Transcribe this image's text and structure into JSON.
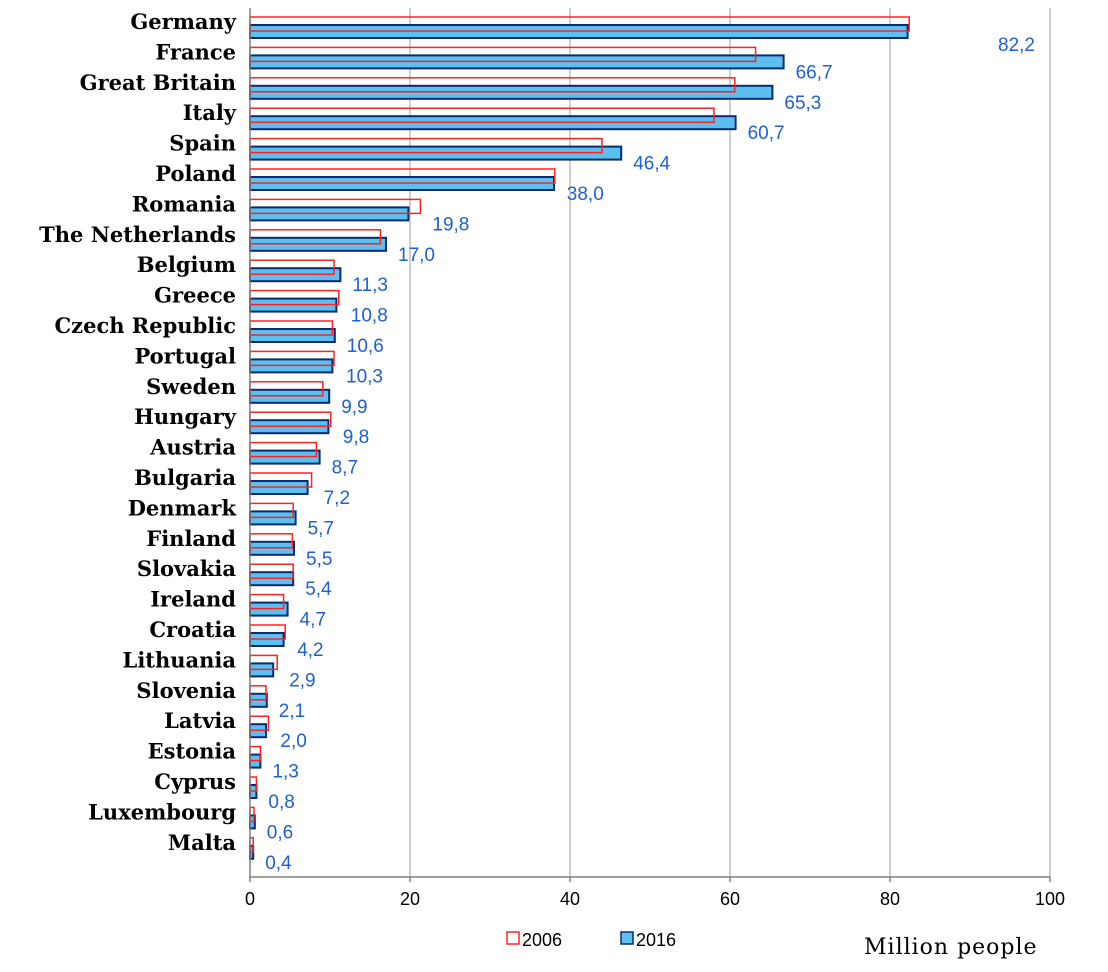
{
  "colors": {
    "bar_2016_fill": "#5bc0f0",
    "bar_2016_stroke": "#0a2a6e",
    "bar_2006_stroke": "#ff2020",
    "value_label": "#1f5fd6",
    "grid": "#bfbfbf"
  },
  "chart_data": {
    "type": "bar",
    "orientation": "horizontal",
    "categories": [
      "Germany",
      "France",
      "Great Britain",
      "Italy",
      "Spain",
      "Poland",
      "Romania",
      "The Netherlands",
      "Belgium",
      "Greece",
      "Czech Republic",
      "Portugal",
      "Sweden",
      "Hungary",
      "Austria",
      "Bulgaria",
      "Denmark",
      "Finland",
      "Slovakia",
      "Ireland",
      "Croatia",
      "Lithuania",
      "Slovenia",
      "Latvia",
      "Estonia",
      "Cyprus",
      "Luxembourg",
      "Malta"
    ],
    "series": [
      {
        "name": "2006",
        "style": "outline",
        "values": [
          82.4,
          63.2,
          60.6,
          58.0,
          44.0,
          38.1,
          21.3,
          16.3,
          10.5,
          11.1,
          10.3,
          10.5,
          9.1,
          10.1,
          8.3,
          7.7,
          5.4,
          5.3,
          5.4,
          4.2,
          4.4,
          3.4,
          2.0,
          2.3,
          1.3,
          0.8,
          0.5,
          0.4
        ]
      },
      {
        "name": "2016",
        "style": "filled",
        "values": [
          82.2,
          66.7,
          65.3,
          60.7,
          46.4,
          38.0,
          19.8,
          17.0,
          11.3,
          10.8,
          10.6,
          10.3,
          9.9,
          9.8,
          8.7,
          7.2,
          5.7,
          5.5,
          5.4,
          4.7,
          4.2,
          2.9,
          2.1,
          2.0,
          1.3,
          0.8,
          0.6,
          0.4
        ]
      }
    ],
    "value_labels": [
      "82,2",
      "66,7",
      "65,3",
      "60,7",
      "46,4",
      "38,0",
      "19,8",
      "17,0",
      "11,3",
      "10,8",
      "10,6",
      "10,3",
      "9,9",
      "9,8",
      "8,7",
      "7,2",
      "5,7",
      "5,5",
      "5,4",
      "4,7",
      "4,2",
      "2,9",
      "2,1",
      "2,0",
      "1,3",
      "0,8",
      "0,6",
      "0,4"
    ],
    "xlim": [
      0,
      100
    ],
    "xticks": [
      "0",
      "20",
      "40",
      "60",
      "80",
      "100"
    ],
    "xlabel": "Million people",
    "grid": true,
    "legend_position": "bottom"
  }
}
